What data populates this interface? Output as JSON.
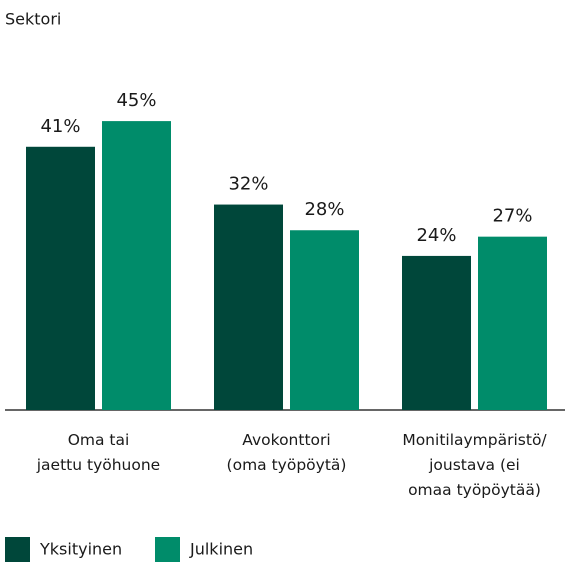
{
  "chart_data": {
    "type": "bar",
    "title": "Sektori",
    "categories": [
      "Oma tai\njaettu työhuone",
      "Avokonttori\n(oma työpöytä)",
      "Monitilaympäristö/\njoustava (ei\nomaa työpöytää)"
    ],
    "series": [
      {
        "name": "Yksityinen",
        "color": "#00473a",
        "values": [
          41,
          32,
          24
        ],
        "value_labels": [
          "41%",
          "32%",
          "24%"
        ]
      },
      {
        "name": "Julkinen",
        "color": "#008c6a",
        "values": [
          45,
          28,
          27
        ],
        "value_labels": [
          "45%",
          "28%",
          "27%"
        ]
      }
    ]
  }
}
